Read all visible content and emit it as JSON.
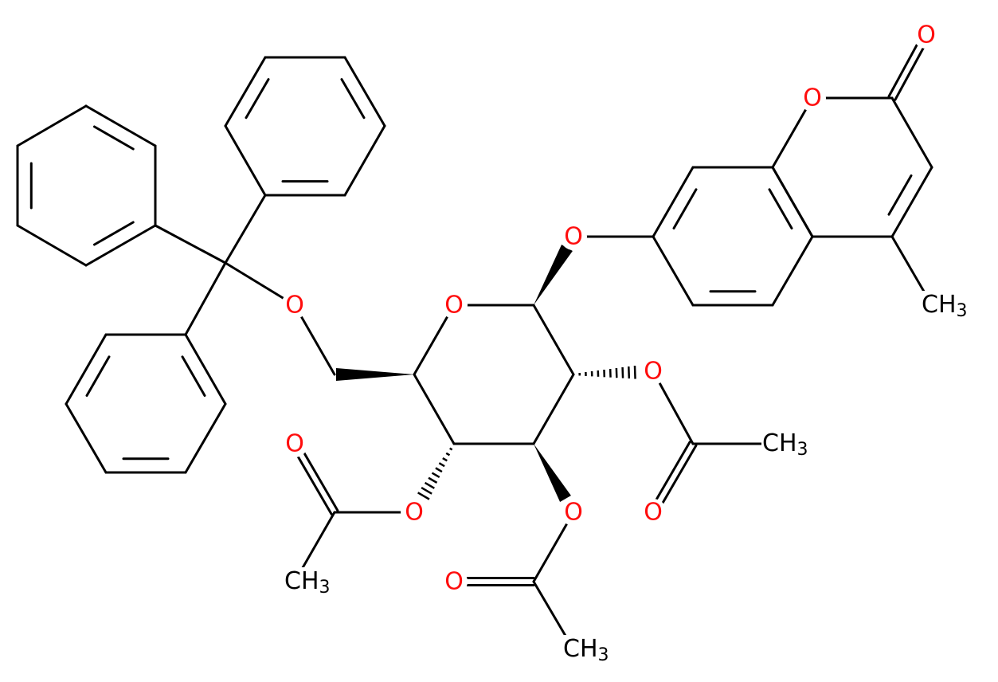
{
  "atoms": [
    {
      "label": "O"
    },
    {
      "label": "O"
    },
    {
      "label": "O"
    },
    {
      "label": "O"
    },
    {
      "label": "O"
    },
    {
      "label": "CH",
      "subscript": "3"
    },
    {
      "label": "O"
    },
    {
      "label": "CH",
      "subscript": "3"
    },
    {
      "label": "O"
    },
    {
      "label": "O"
    },
    {
      "label": "O"
    },
    {
      "label": "CH",
      "subscript": "3"
    },
    {
      "label": "O"
    },
    {
      "label": "O"
    },
    {
      "label": "CH",
      "subscript": "3"
    }
  ]
}
